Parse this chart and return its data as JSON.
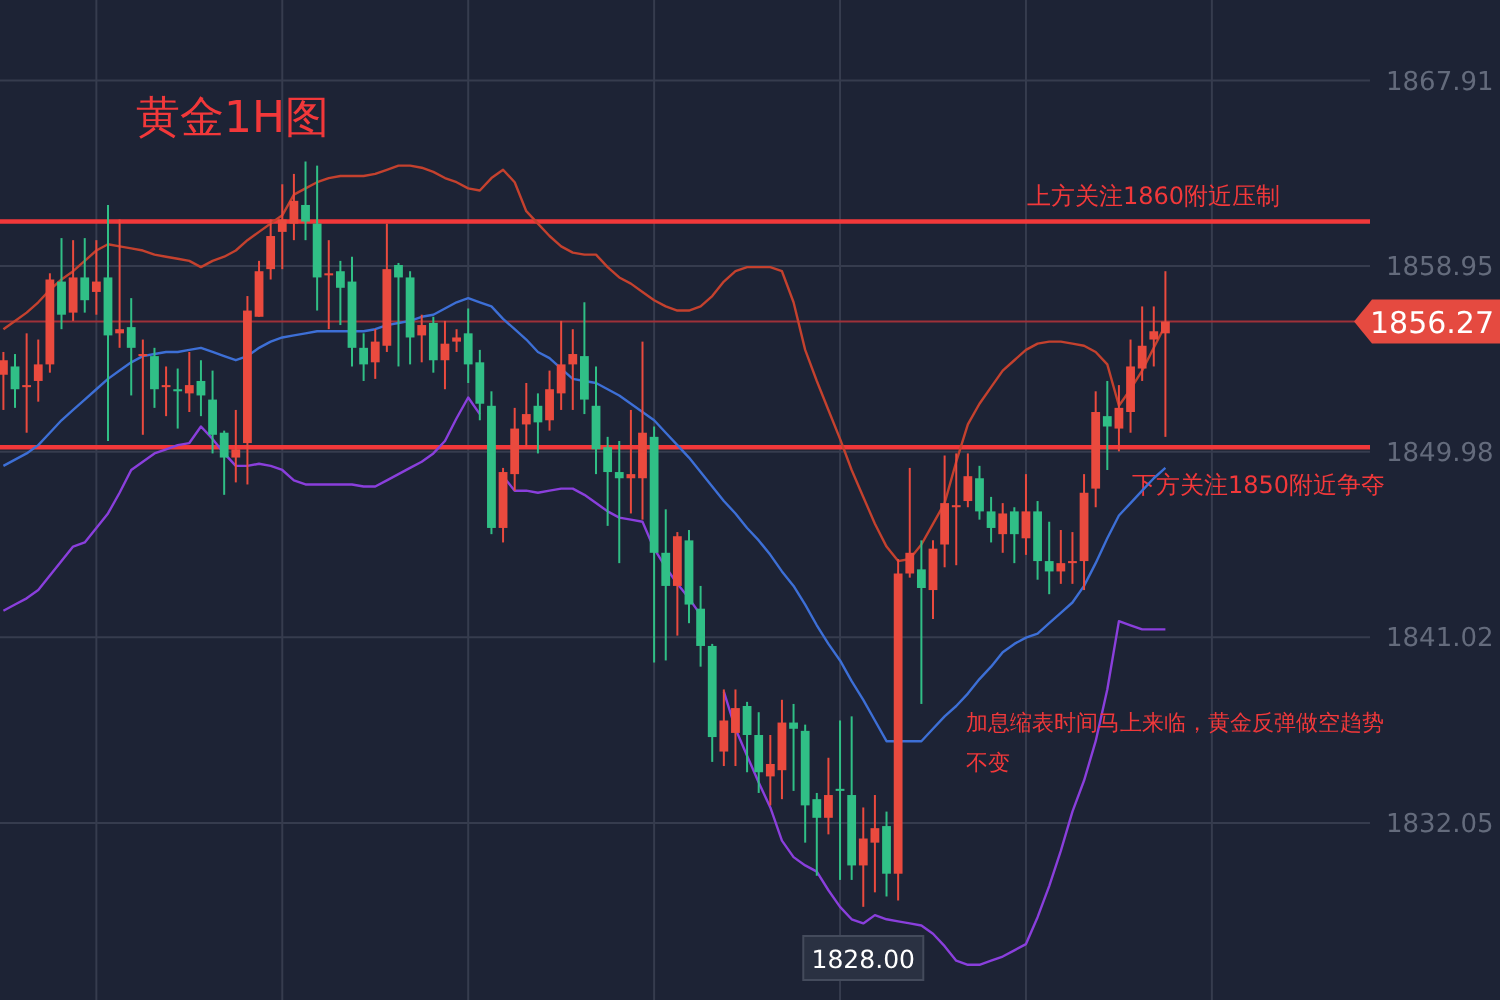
{
  "chart_data": {
    "type": "candlestick",
    "title": "黄金1H图",
    "categories": [
      null,
      null,
      null,
      null,
      null,
      null,
      null,
      null,
      null,
      null,
      null,
      null,
      null,
      null,
      null,
      null,
      null,
      null,
      null,
      null,
      null,
      null,
      null,
      null,
      null,
      null,
      null,
      null,
      null,
      null,
      null,
      null,
      null,
      null,
      null,
      null,
      null,
      null,
      null,
      null,
      null,
      null,
      null,
      null,
      null,
      null,
      null,
      null,
      null,
      null,
      null,
      null,
      null,
      null,
      null,
      null,
      null,
      null,
      null,
      null,
      null,
      null,
      null,
      null,
      null,
      null,
      null,
      null,
      null,
      null,
      null,
      null,
      null,
      null,
      null,
      null,
      null,
      null,
      null,
      null,
      null,
      null,
      null,
      null,
      null,
      null,
      null,
      null,
      null,
      null,
      null,
      null,
      null,
      null,
      null,
      null,
      null,
      null,
      null,
      null,
      null
    ],
    "ohlc": [
      [
        1853.7,
        1854.8,
        1852.0,
        1854.4
      ],
      [
        1854.1,
        1854.7,
        1852.1,
        1853.0
      ],
      [
        1853.1,
        1855.7,
        1850.9,
        1853.2
      ],
      [
        1853.4,
        1855.4,
        1852.4,
        1854.2
      ],
      [
        1854.2,
        1858.6,
        1853.8,
        1858.3
      ],
      [
        1858.2,
        1860.3,
        1855.9,
        1856.6
      ],
      [
        1856.7,
        1860.2,
        1856.3,
        1858.4
      ],
      [
        1858.4,
        1860.3,
        1856.7,
        1857.3
      ],
      [
        1857.7,
        1860.2,
        1856.6,
        1858.2
      ],
      [
        1858.4,
        1861.9,
        1850.5,
        1855.6
      ],
      [
        1855.7,
        1861.2,
        1855.0,
        1855.9
      ],
      [
        1856.0,
        1857.4,
        1852.7,
        1855.0
      ],
      [
        1854.6,
        1855.4,
        1850.8,
        1854.7
      ],
      [
        1854.6,
        1855.0,
        1852.1,
        1853.0
      ],
      [
        1853.1,
        1854.1,
        1851.7,
        1853.2
      ],
      [
        1853.0,
        1854.0,
        1851.1,
        1852.9
      ],
      [
        1852.8,
        1854.8,
        1851.9,
        1853.2
      ],
      [
        1853.4,
        1854.4,
        1851.7,
        1852.7
      ],
      [
        1852.5,
        1853.9,
        1849.9,
        1850.8
      ],
      [
        1850.9,
        1851.0,
        1847.9,
        1849.7
      ],
      [
        1849.7,
        1852.0,
        1848.5,
        1850.1
      ],
      [
        1850.4,
        1857.5,
        1848.4,
        1856.8
      ],
      [
        1856.5,
        1859.2,
        1856.5,
        1858.7
      ],
      [
        1858.8,
        1861.2,
        1858.3,
        1860.4
      ],
      [
        1860.6,
        1862.9,
        1858.8,
        1861.2
      ],
      [
        1861.0,
        1863.4,
        1860.2,
        1862.1
      ],
      [
        1861.9,
        1864.0,
        1860.2,
        1861.1
      ],
      [
        1861.0,
        1863.8,
        1856.8,
        1858.4
      ],
      [
        1858.5,
        1860.2,
        1855.9,
        1858.6
      ],
      [
        1858.7,
        1859.2,
        1856.1,
        1857.9
      ],
      [
        1858.2,
        1859.4,
        1854.1,
        1855.0
      ],
      [
        1855.0,
        1855.7,
        1853.4,
        1854.2
      ],
      [
        1854.3,
        1855.9,
        1853.5,
        1855.3
      ],
      [
        1855.1,
        1861.0,
        1854.8,
        1858.8
      ],
      [
        1859.0,
        1859.1,
        1854.1,
        1858.4
      ],
      [
        1858.4,
        1858.7,
        1854.2,
        1855.5
      ],
      [
        1855.6,
        1856.6,
        1854.3,
        1856.1
      ],
      [
        1856.2,
        1856.5,
        1853.8,
        1854.4
      ],
      [
        1854.4,
        1856.3,
        1853.0,
        1855.2
      ],
      [
        1855.3,
        1855.9,
        1854.8,
        1855.5
      ],
      [
        1855.7,
        1856.9,
        1853.3,
        1854.2
      ],
      [
        1854.3,
        1854.9,
        1851.5,
        1852.3
      ],
      [
        1852.2,
        1852.9,
        1846.0,
        1846.3
      ],
      [
        1846.3,
        1849.2,
        1845.6,
        1849.0
      ],
      [
        1848.9,
        1852.1,
        1848.1,
        1851.1
      ],
      [
        1851.3,
        1853.3,
        1850.2,
        1851.8
      ],
      [
        1852.2,
        1852.8,
        1849.9,
        1851.4
      ],
      [
        1851.5,
        1853.9,
        1851.0,
        1853.0
      ],
      [
        1852.8,
        1856.3,
        1852.0,
        1854.2
      ],
      [
        1854.2,
        1855.9,
        1852.0,
        1854.7
      ],
      [
        1854.6,
        1857.2,
        1851.8,
        1852.5
      ],
      [
        1852.2,
        1854.1,
        1848.9,
        1850.1
      ],
      [
        1850.2,
        1850.7,
        1846.4,
        1849.0
      ],
      [
        1849.0,
        1850.5,
        1844.6,
        1848.7
      ],
      [
        1848.7,
        1852.0,
        1847.0,
        1848.9
      ],
      [
        1848.7,
        1855.3,
        1846.7,
        1850.9
      ],
      [
        1850.7,
        1851.2,
        1839.8,
        1845.1
      ],
      [
        1845.1,
        1847.2,
        1839.9,
        1843.5
      ],
      [
        1843.5,
        1846.1,
        1841.1,
        1845.9
      ],
      [
        1845.7,
        1846.2,
        1841.7,
        1842.6
      ],
      [
        1842.4,
        1843.5,
        1839.6,
        1840.6
      ],
      [
        1840.6,
        1840.7,
        1835.0,
        1836.2
      ],
      [
        1835.5,
        1838.5,
        1834.8,
        1837.0
      ],
      [
        1836.4,
        1838.5,
        1834.8,
        1837.6
      ],
      [
        1837.7,
        1837.9,
        1834.5,
        1836.3
      ],
      [
        1836.3,
        1837.4,
        1833.5,
        1834.5
      ],
      [
        1834.3,
        1836.3,
        1832.9,
        1834.9
      ],
      [
        1834.6,
        1838.0,
        1833.2,
        1836.9
      ],
      [
        1836.9,
        1837.8,
        1833.6,
        1836.6
      ],
      [
        1836.5,
        1836.8,
        1831.1,
        1832.9
      ],
      [
        1833.2,
        1833.5,
        1829.5,
        1832.3
      ],
      [
        1832.3,
        1835.2,
        1831.5,
        1833.4
      ],
      [
        1833.7,
        1837.0,
        1829.3,
        1833.6
      ],
      [
        1833.4,
        1837.2,
        1829.3,
        1830.0
      ],
      [
        1830.0,
        1832.8,
        1828.0,
        1831.3
      ],
      [
        1831.1,
        1833.4,
        1828.7,
        1831.8
      ],
      [
        1831.9,
        1832.6,
        1828.5,
        1829.6
      ],
      [
        1829.6,
        1844.8,
        1828.3,
        1844.1
      ],
      [
        1844.1,
        1849.2,
        1843.9,
        1845.1
      ],
      [
        1844.3,
        1845.7,
        1837.8,
        1843.4
      ],
      [
        1843.3,
        1845.7,
        1841.9,
        1845.3
      ],
      [
        1845.5,
        1849.8,
        1844.4,
        1847.5
      ],
      [
        1847.3,
        1849.9,
        1844.5,
        1847.4
      ],
      [
        1847.6,
        1849.9,
        1847.3,
        1848.8
      ],
      [
        1848.7,
        1849.3,
        1846.7,
        1847.1
      ],
      [
        1847.1,
        1847.8,
        1845.6,
        1846.3
      ],
      [
        1846.0,
        1847.5,
        1845.1,
        1847.0
      ],
      [
        1847.1,
        1847.3,
        1844.6,
        1846.0
      ],
      [
        1845.8,
        1848.9,
        1845.0,
        1847.1
      ],
      [
        1847.1,
        1847.6,
        1843.8,
        1844.7
      ],
      [
        1844.7,
        1846.6,
        1843.1,
        1844.2
      ],
      [
        1844.2,
        1846.2,
        1843.6,
        1844.6
      ],
      [
        1844.6,
        1846.1,
        1843.6,
        1844.7
      ],
      [
        1844.7,
        1848.9,
        1843.3,
        1848.0
      ],
      [
        1848.2,
        1852.9,
        1847.3,
        1851.9
      ],
      [
        1851.7,
        1853.4,
        1849.1,
        1851.2
      ],
      [
        1851.1,
        1853.2,
        1850.0,
        1852.1
      ],
      [
        1851.9,
        1855.4,
        1850.9,
        1854.1
      ],
      [
        1854.0,
        1857.0,
        1853.4,
        1855.1
      ],
      [
        1855.4,
        1857.0,
        1854.1,
        1855.8
      ],
      [
        1855.7,
        1858.7,
        1850.7,
        1856.27
      ]
    ],
    "series": [
      {
        "type": "line",
        "color": "#c4412e",
        "values": [
          1855.9,
          1856.3,
          1856.7,
          1857.2,
          1857.8,
          1858.3,
          1858.7,
          1859.2,
          1859.7,
          1860.0,
          1859.9,
          1859.8,
          1859.7,
          1859.5,
          1859.4,
          1859.3,
          1859.2,
          1858.9,
          1859.2,
          1859.4,
          1859.7,
          1860.2,
          1860.6,
          1861.0,
          1861.4,
          1862.4,
          1862.7,
          1863.0,
          1863.2,
          1863.3,
          1863.3,
          1863.3,
          1863.4,
          1863.6,
          1863.8,
          1863.8,
          1863.7,
          1863.5,
          1863.2,
          1863.0,
          1862.7,
          1862.6,
          1863.2,
          1863.6,
          1863.0,
          1861.6,
          1861.0,
          1860.4,
          1859.9,
          1859.6,
          1859.5,
          1859.5,
          1858.9,
          1858.4,
          1858.1,
          1857.7,
          1857.3,
          1857.0,
          1856.8,
          1856.8,
          1857.0,
          1857.5,
          1858.2,
          1858.7,
          1858.9,
          1858.9,
          1858.9,
          1858.7,
          1857.2,
          1854.9,
          1853.4,
          1852.0,
          1850.6,
          1849.1,
          1847.8,
          1846.5,
          1845.4,
          1844.7,
          1844.8,
          1845.5,
          1846.5,
          1847.5,
          1849.5,
          1851.3,
          1852.3,
          1853.1,
          1853.9,
          1854.4,
          1854.9,
          1855.2,
          1855.3,
          1855.3,
          1855.2,
          1855.1,
          1854.8,
          1854.2,
          1852.2,
          1853.0,
          1853.9,
          1855.0,
          1856.1
        ]
      },
      {
        "type": "line",
        "color": "#3d6fd6",
        "values": [
          1849.3,
          1849.6,
          1849.9,
          1850.3,
          1850.9,
          1851.5,
          1852.0,
          1852.5,
          1853.0,
          1853.5,
          1853.9,
          1854.3,
          1854.6,
          1854.7,
          1854.8,
          1854.8,
          1854.9,
          1855.0,
          1854.8,
          1854.6,
          1854.4,
          1854.6,
          1855.0,
          1855.3,
          1855.5,
          1855.6,
          1855.7,
          1855.8,
          1855.8,
          1855.8,
          1855.8,
          1855.8,
          1855.9,
          1856.1,
          1856.2,
          1856.3,
          1856.5,
          1856.6,
          1856.9,
          1857.2,
          1857.4,
          1857.2,
          1857.0,
          1856.4,
          1855.9,
          1855.4,
          1854.8,
          1854.5,
          1854.0,
          1853.5,
          1853.4,
          1853.3,
          1853.0,
          1852.7,
          1852.3,
          1851.9,
          1851.5,
          1850.9,
          1850.3,
          1849.7,
          1849.0,
          1848.3,
          1847.6,
          1847.0,
          1846.3,
          1845.7,
          1845.0,
          1844.2,
          1843.5,
          1842.6,
          1841.6,
          1840.7,
          1839.9,
          1838.9,
          1838.0,
          1837.0,
          1836.0,
          1836.0,
          1836.0,
          1836.0,
          1836.6,
          1837.2,
          1837.7,
          1838.3,
          1839.0,
          1839.6,
          1840.3,
          1840.7,
          1841.0,
          1841.2,
          1841.7,
          1842.2,
          1842.7,
          1843.5,
          1844.6,
          1845.8,
          1846.9,
          1847.5,
          1848.1,
          1848.7,
          1849.2
        ]
      },
      {
        "type": "line",
        "color": "#8a3fdc",
        "values": [
          1842.3,
          1842.6,
          1842.9,
          1843.3,
          1844.0,
          1844.7,
          1845.4,
          1845.6,
          1846.3,
          1847.0,
          1848.0,
          1849.1,
          1849.5,
          1849.9,
          1850.1,
          1850.3,
          1850.4,
          1851.2,
          1850.6,
          1849.9,
          1849.3,
          1849.3,
          1849.4,
          1849.3,
          1849.1,
          1848.6,
          1848.4,
          1848.4,
          1848.4,
          1848.4,
          1848.4,
          1848.3,
          1848.3,
          1848.6,
          1848.9,
          1849.2,
          1849.5,
          1849.9,
          1850.5,
          1851.6,
          1852.6,
          1851.8,
          null,
          1848.8,
          1848.1,
          1848.1,
          1848.0,
          1848.1,
          1848.2,
          1848.2,
          1847.9,
          1847.5,
          1847.1,
          1846.8,
          1846.7,
          1846.6,
          1845.3,
          1844.4,
          1843.6,
          1842.9,
          1842.1,
          null,
          1838.4,
          1836.6,
          1835.3,
          1834.0,
          1832.8,
          1831.2,
          1830.4,
          1830.0,
          1829.7,
          1828.8,
          1828.0,
          1827.4,
          1827.2,
          1827.6,
          1827.4,
          1827.3,
          1827.2,
          1827.1,
          1826.7,
          1826.1,
          1825.4,
          1825.2,
          1825.2,
          1825.4,
          1825.6,
          1825.9,
          1826.2,
          1827.5,
          1829.0,
          1830.7,
          1832.6,
          1834.1,
          1836.0,
          1838.5,
          1841.8,
          1841.6,
          1841.4,
          1841.4,
          1841.4
        ]
      }
    ],
    "ylim": [
      1823.5,
      1871.8
    ],
    "yticks": [
      1867.91,
      1858.95,
      1849.98,
      1841.02,
      1832.05
    ],
    "grid": true,
    "ref_lines": [
      {
        "axis": "y",
        "value": 1861.1,
        "label": "上方关注1860附近压制",
        "color": "#f2383a"
      },
      {
        "axis": "y",
        "value": 1850.2,
        "label": "下方关注1850附近争夺",
        "color": "#f2383a"
      },
      {
        "axis": "y",
        "value": 1856.27,
        "label": "1856.27",
        "color": "#9e3139"
      }
    ],
    "annotations": [
      "1828.00",
      "加息缩表时间马上来临，黄金反弹做空趋势不变"
    ]
  }
}
